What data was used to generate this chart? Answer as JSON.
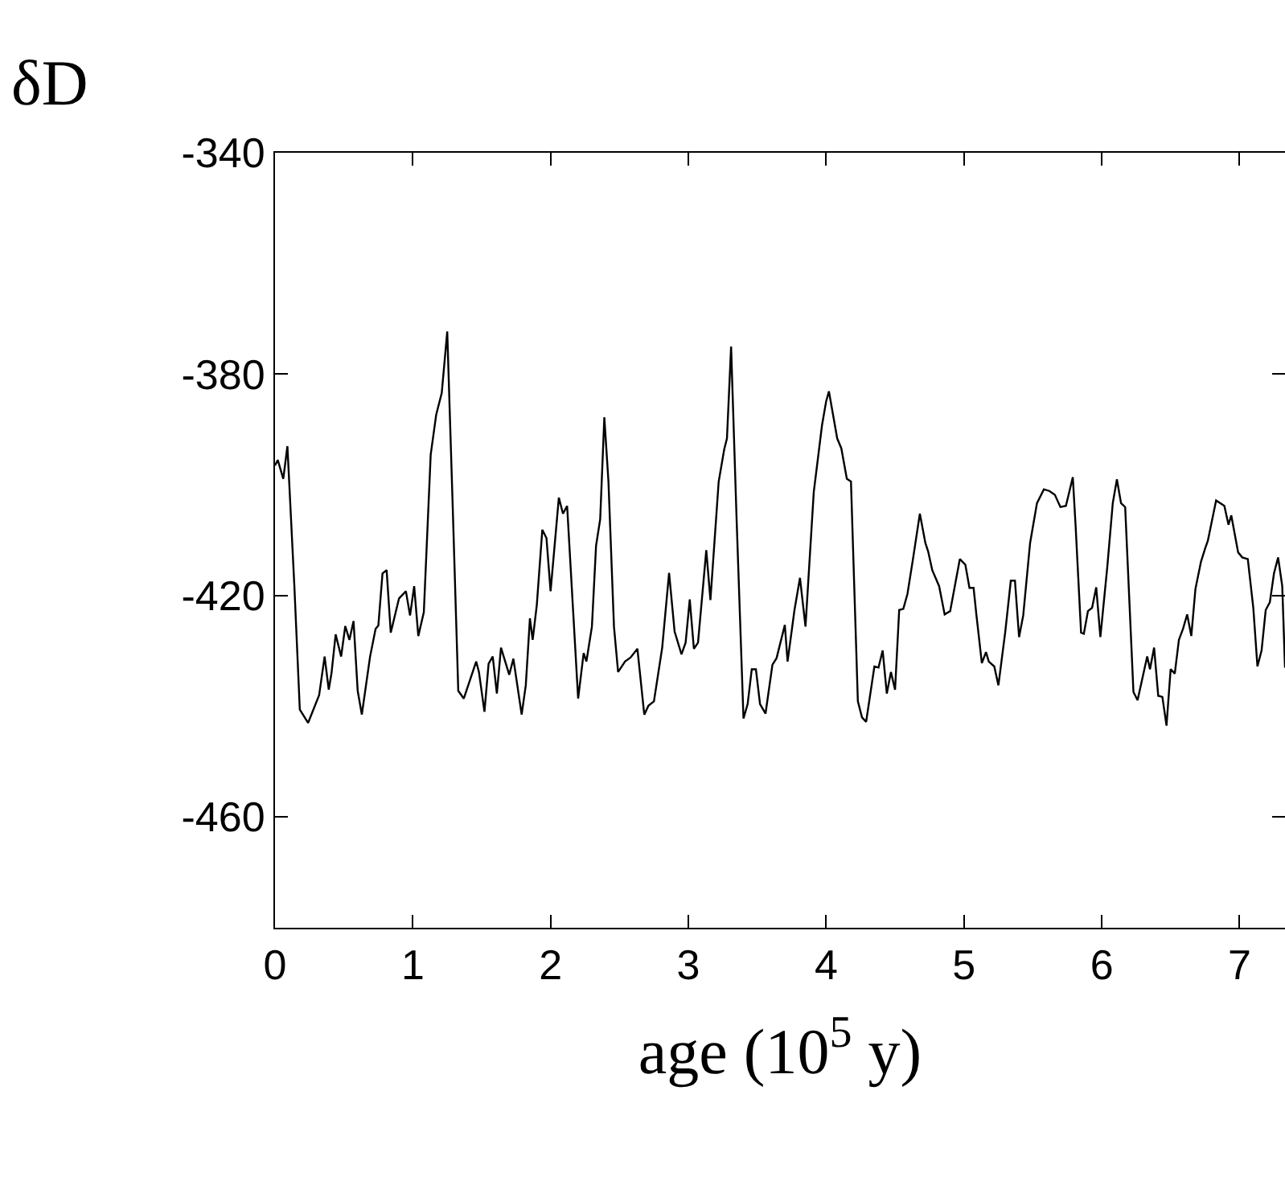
{
  "chart_data": {
    "type": "line",
    "xlabel": "age (10$^{5}$ y)",
    "ylabel": "δD",
    "x": [
      0.0,
      0.02,
      0.06,
      0.09,
      0.14,
      0.18,
      0.24,
      0.32,
      0.36,
      0.39,
      0.41,
      0.44,
      0.48,
      0.51,
      0.54,
      0.57,
      0.6,
      0.63,
      0.69,
      0.73,
      0.75,
      0.78,
      0.81,
      0.84,
      0.9,
      0.95,
      0.98,
      1.01,
      1.04,
      1.08,
      1.13,
      1.17,
      1.21,
      1.25,
      1.29,
      1.33,
      1.37,
      1.46,
      1.48,
      1.52,
      1.55,
      1.58,
      1.61,
      1.64,
      1.7,
      1.73,
      1.79,
      1.82,
      1.85,
      1.87,
      1.9,
      1.94,
      1.97,
      2.0,
      2.06,
      2.09,
      2.12,
      2.19,
      2.2,
      2.24,
      2.26,
      2.3,
      2.33,
      2.36,
      2.39,
      2.42,
      2.46,
      2.49,
      2.54,
      2.58,
      2.63,
      2.68,
      2.71,
      2.75,
      2.81,
      2.86,
      2.9,
      2.95,
      2.98,
      3.01,
      3.04,
      3.07,
      3.13,
      3.16,
      3.22,
      3.26,
      3.28,
      3.31,
      3.35,
      3.4,
      3.43,
      3.46,
      3.49,
      3.52,
      3.56,
      3.61,
      3.64,
      3.7,
      3.72,
      3.77,
      3.81,
      3.85,
      3.91,
      3.97,
      4.0,
      4.02,
      4.08,
      4.11,
      4.15,
      4.18,
      4.23,
      4.26,
      4.29,
      4.35,
      4.38,
      4.41,
      4.44,
      4.47,
      4.5,
      4.53,
      4.56,
      4.59,
      4.63,
      4.68,
      4.72,
      4.74,
      4.77,
      4.82,
      4.86,
      4.9,
      4.97,
      5.01,
      5.04,
      5.07,
      5.09,
      5.13,
      5.16,
      5.18,
      5.22,
      5.25,
      5.3,
      5.34,
      5.37,
      5.4,
      5.43,
      5.48,
      5.53,
      5.58,
      5.62,
      5.66,
      5.7,
      5.74,
      5.79,
      5.81,
      5.85,
      5.87,
      5.9,
      5.93,
      5.96,
      5.99,
      6.04,
      6.08,
      6.11,
      6.14,
      6.17,
      6.23,
      6.26,
      6.33,
      6.35,
      6.38,
      6.41,
      6.44,
      6.47,
      6.5,
      6.53,
      6.56,
      6.59,
      6.62,
      6.65,
      6.68,
      6.72,
      6.75,
      6.77,
      6.83,
      6.89,
      6.92,
      6.94,
      6.99,
      7.02,
      7.06,
      7.1,
      7.13,
      7.16,
      7.19,
      7.22,
      7.25,
      7.28,
      7.31,
      7.33
    ],
    "values": [
      -396.5,
      -395.5,
      -398.9,
      -393,
      -418,
      -440.6,
      -443,
      -438,
      -431,
      -437,
      -434,
      -427,
      -431,
      -425.5,
      -428,
      -424.6,
      -437.2,
      -441.5,
      -431,
      -426,
      -425.4,
      -416,
      -415.4,
      -426.7,
      -420.5,
      -419.2,
      -423.6,
      -418.3,
      -427.3,
      -423,
      -394.5,
      -387.3,
      -383.4,
      -372.3,
      -404.2,
      -437.2,
      -438.6,
      -431.9,
      -433.8,
      -441,
      -432.3,
      -431,
      -437.7,
      -429.4,
      -434.3,
      -431.4,
      -441.5,
      -436.2,
      -424.1,
      -428,
      -421.7,
      -408.1,
      -409.6,
      -419.2,
      -402.3,
      -405.2,
      -403.8,
      -434.3,
      -438.6,
      -430.4,
      -431.9,
      -425.6,
      -411,
      -406.2,
      -387.8,
      -399.4,
      -425.6,
      -433.8,
      -431.9,
      -431.2,
      -429.6,
      -441.5,
      -439.9,
      -439.1,
      -429.4,
      -415.9,
      -426.5,
      -430.6,
      -428.5,
      -420.7,
      -429.6,
      -428.5,
      -411.8,
      -420.8,
      -399.4,
      -393.6,
      -391.6,
      -375,
      -406.2,
      -442.2,
      -439.6,
      -433.3,
      -433.3,
      -439.6,
      -441.3,
      -432.5,
      -431.3,
      -425.3,
      -431.9,
      -422.6,
      -416.8,
      -425.6,
      -401.3,
      -389.2,
      -384.9,
      -383.1,
      -391.6,
      -393.4,
      -398.9,
      -399.4,
      -439.1,
      -442,
      -442.8,
      -432.8,
      -433,
      -429.9,
      -437.7,
      -433.8,
      -437,
      -422.6,
      -422.4,
      -419.7,
      -413.4,
      -405.2,
      -410.5,
      -412,
      -415.4,
      -418.3,
      -423.4,
      -422.8,
      -413.4,
      -414.4,
      -418.6,
      -418.6,
      -423.4,
      -432.2,
      -430.2,
      -431.9,
      -432.8,
      -436.2,
      -426.5,
      -417.3,
      -417.3,
      -427.5,
      -423.6,
      -410.5,
      -403.3,
      -400.8,
      -401.1,
      -401.8,
      -404,
      -403.8,
      -398.6,
      -407.2,
      -426.7,
      -426.9,
      -422.8,
      -422.2,
      -418.5,
      -427.5,
      -414.9,
      -403.3,
      -399,
      -403.3,
      -404,
      -437.4,
      -438.9,
      -431,
      -433.3,
      -429.4,
      -438.1,
      -438.3,
      -443.5,
      -433.3,
      -434.1,
      -428,
      -426,
      -423.4,
      -427.3,
      -418.8,
      -413.9,
      -411.5,
      -410.1,
      -402.8,
      -403.8,
      -407.2,
      -405.5,
      -412.2,
      -413.1,
      -413.4,
      -422.2,
      -432.8,
      -429.9,
      -422.6,
      -421.2,
      -416,
      -413.1,
      -418.3,
      -433
    ],
    "color": "#000000",
    "line_style": "solid",
    "marker": "none",
    "grid": false,
    "xlim": [
      0,
      7.33
    ],
    "xticks": [
      0,
      1,
      2,
      3,
      4,
      5,
      6,
      7
    ],
    "ylim": [
      -480,
      -340
    ],
    "yticks": [
      -340,
      -380,
      -420,
      -460
    ]
  }
}
